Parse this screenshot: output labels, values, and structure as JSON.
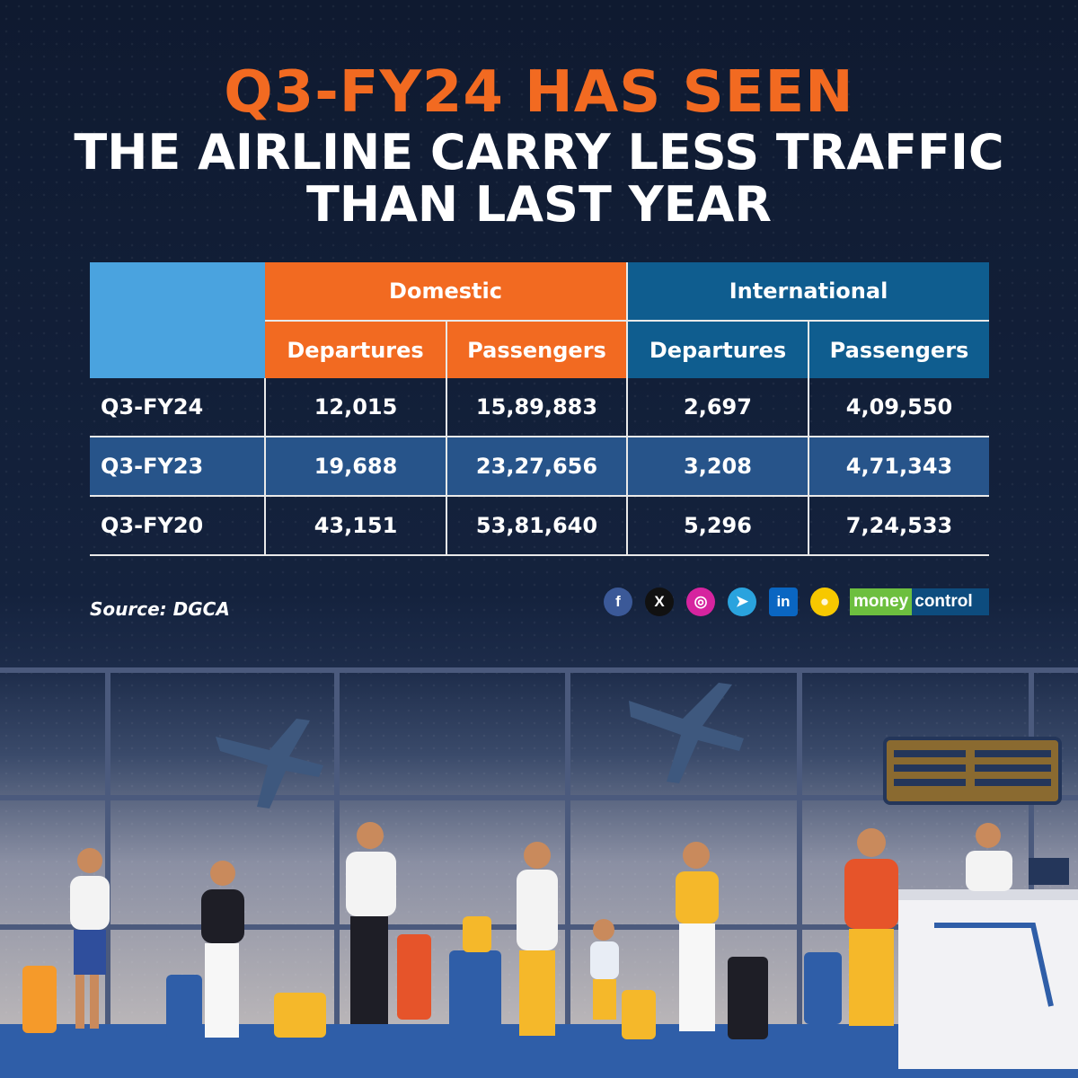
{
  "title": {
    "line1": "Q3-FY24 HAS SEEN",
    "line2": "THE AIRLINE CARRY LESS TRAFFIC",
    "line3": "THAN LAST YEAR"
  },
  "table": {
    "groups": {
      "domestic": "Domestic",
      "international": "International"
    },
    "subheaders": [
      "Departures",
      "Passengers",
      "Departures",
      "Passengers"
    ],
    "rows": [
      {
        "label": "Q3-FY24",
        "values": [
          "12,015",
          "15,89,883",
          "2,697",
          "4,09,550"
        ]
      },
      {
        "label": "Q3-FY23",
        "values": [
          "19,688",
          "23,27,656",
          "3,208",
          "4,71,343"
        ]
      },
      {
        "label": "Q3-FY20",
        "values": [
          "43,151",
          "53,81,640",
          "5,296",
          "7,24,533"
        ]
      }
    ]
  },
  "source": "Source: DGCA",
  "social": {
    "facebook": "f",
    "x": "X",
    "instagram": "◎",
    "telegram": "➤",
    "linkedin": "in",
    "koo": "●"
  },
  "brand": {
    "part1": "money",
    "part2": "control"
  },
  "colors": {
    "orange": "#f26a21",
    "blue": "#0f5d8f",
    "light_blue": "#4aa3df",
    "navy": "#14223d",
    "row_alt": "#27548a"
  }
}
